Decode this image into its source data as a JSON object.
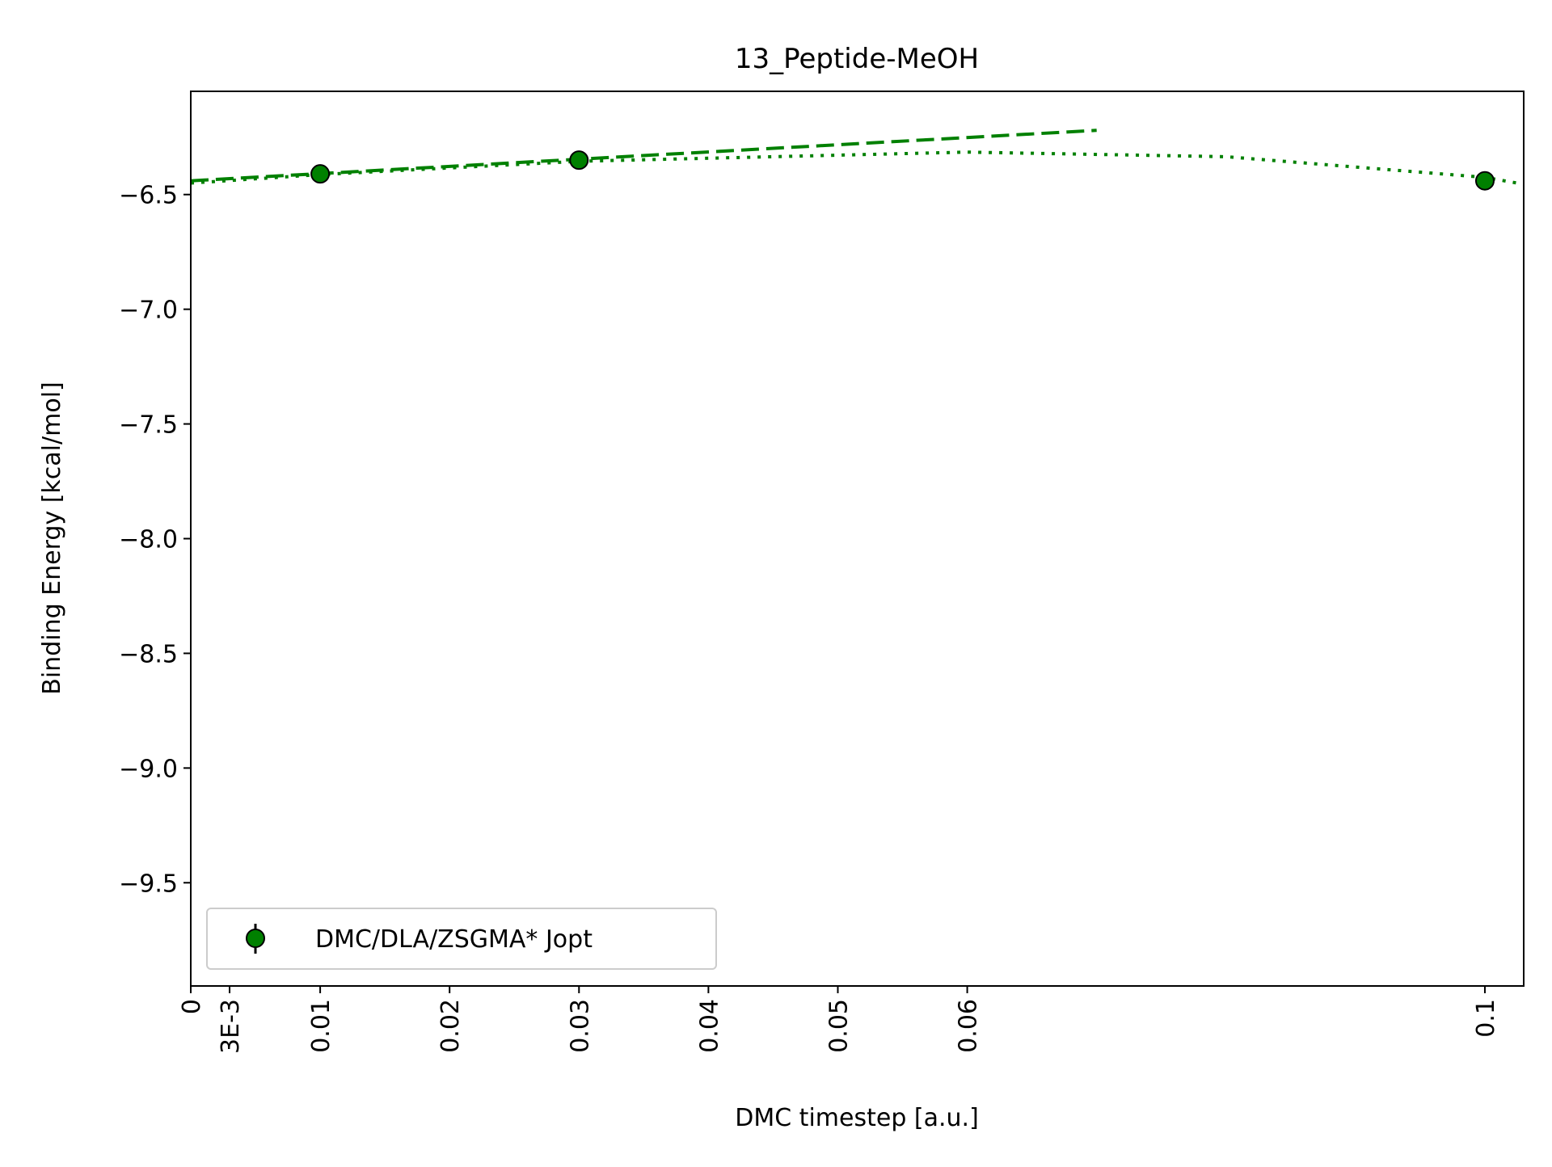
{
  "chart_data": {
    "type": "scatter",
    "title": "13_Peptide-MeOH",
    "xlabel": "DMC timestep [a.u.]",
    "ylabel": "Binding Energy [kcal/mol]",
    "xlim": [
      0,
      0.103
    ],
    "ylim": [
      -9.95,
      -6.05
    ],
    "xticks": [
      {
        "value": 0,
        "label": "0"
      },
      {
        "value": 0.003,
        "label": "3E-3"
      },
      {
        "value": 0.01,
        "label": "0.01"
      },
      {
        "value": 0.02,
        "label": "0.02"
      },
      {
        "value": 0.03,
        "label": "0.03"
      },
      {
        "value": 0.04,
        "label": "0.04"
      },
      {
        "value": 0.05,
        "label": "0.05"
      },
      {
        "value": 0.06,
        "label": "0.06"
      },
      {
        "value": 0.1,
        "label": "0.1"
      }
    ],
    "yticks": [
      {
        "value": -6.5,
        "label": "−6.5"
      },
      {
        "value": -7.0,
        "label": "−7.0"
      },
      {
        "value": -7.5,
        "label": "−7.5"
      },
      {
        "value": -8.0,
        "label": "−8.0"
      },
      {
        "value": -8.5,
        "label": "−8.5"
      },
      {
        "value": -9.0,
        "label": "−9.0"
      },
      {
        "value": -9.5,
        "label": "−9.5"
      }
    ],
    "grid": false,
    "legend_position": "lower-left",
    "color": "#008000",
    "series": [
      {
        "name": "DMC/DLA/ZSGMA* Jopt",
        "x": [
          0.01,
          0.03,
          0.1
        ],
        "y": [
          -6.41,
          -6.35,
          -6.44
        ],
        "yerr": [
          0.04,
          0.04,
          0.04
        ]
      }
    ],
    "fit_lines": [
      {
        "style": "dashed",
        "x": [
          0,
          0.07
        ],
        "y": [
          -6.44,
          -6.22
        ]
      },
      {
        "style": "dotted",
        "x": [
          0,
          0.01,
          0.03,
          0.06,
          0.08,
          0.1,
          0.103
        ],
        "y": [
          -6.45,
          -6.413,
          -6.355,
          -6.315,
          -6.335,
          -6.425,
          -6.455
        ]
      }
    ]
  }
}
